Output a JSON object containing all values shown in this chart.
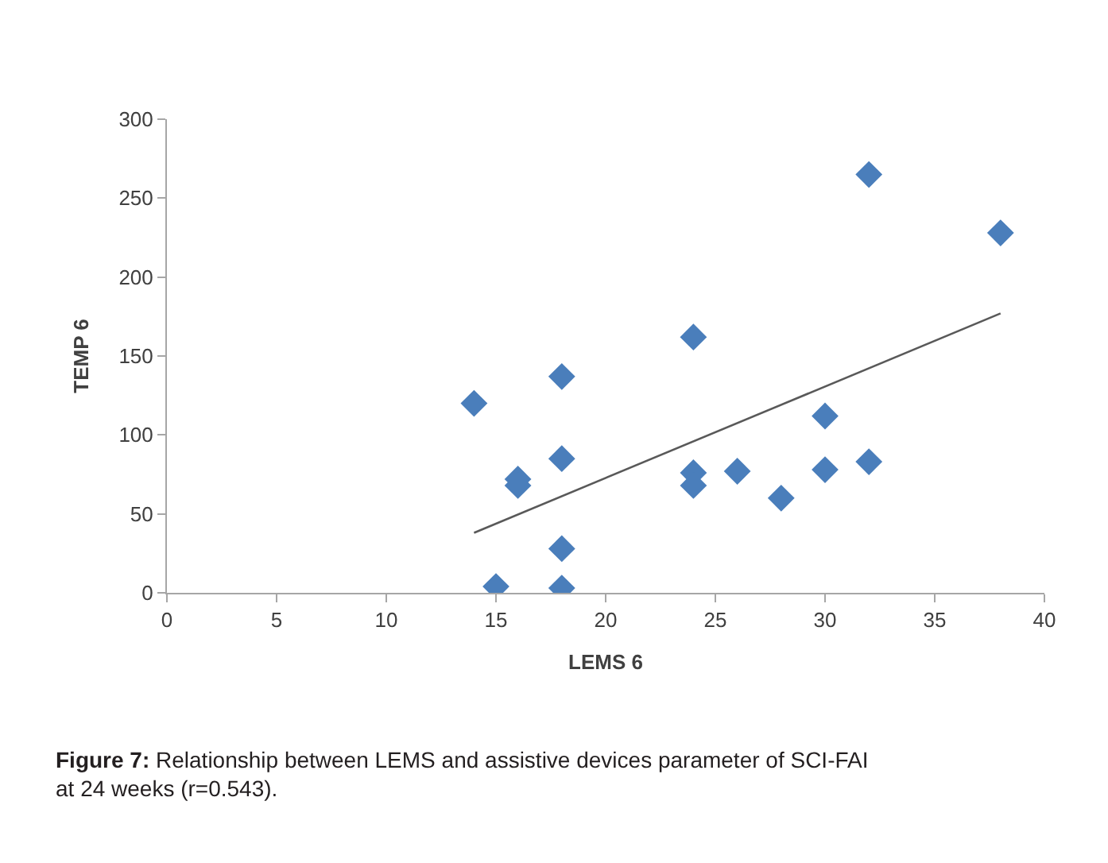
{
  "chart_data": {
    "type": "scatter",
    "xlabel": "LEMS 6",
    "ylabel": "TEMP 6",
    "xlim": [
      0,
      40
    ],
    "xticks": [
      0,
      5,
      10,
      15,
      20,
      25,
      30,
      35,
      40
    ],
    "ylim": [
      0,
      300
    ],
    "yticks": [
      0,
      50,
      100,
      150,
      200,
      250,
      300
    ],
    "grid": false,
    "series": [
      {
        "marker": "diamond",
        "color": "#4a7ebb",
        "x": [
          14,
          15,
          16,
          16,
          18,
          18,
          18,
          18,
          24,
          24,
          24,
          26,
          28,
          30,
          30,
          32,
          32,
          38
        ],
        "values": [
          120,
          4,
          72,
          68,
          137,
          85,
          28,
          3,
          162,
          76,
          68,
          77,
          60,
          112,
          78,
          265,
          83,
          228
        ]
      },
      {
        "type": "line",
        "marker": "none",
        "color": "#595959",
        "x": [
          14,
          38
        ],
        "values": [
          38,
          177
        ]
      }
    ],
    "annotations": [
      "Figure 7: Relationship between LEMS and assistive devices parameter of SCI-FAI at 24 weeks (r=0.543)."
    ]
  }
}
